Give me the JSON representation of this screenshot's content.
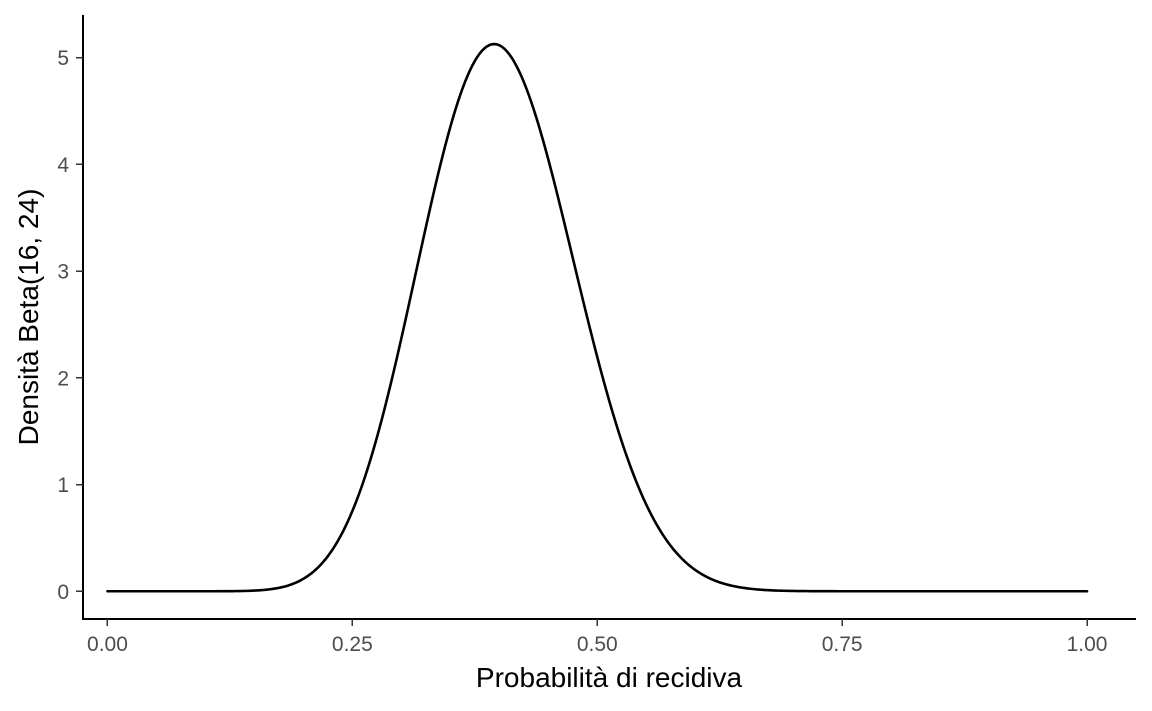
{
  "chart_data": {
    "type": "line",
    "title": "",
    "xlabel": "Probabilità di recidiva",
    "ylabel": "Densità Beta(16, 24)",
    "xlim": [
      -0.025,
      1.05
    ],
    "ylim": [
      -0.26,
      5.4
    ],
    "grid": false,
    "legend": "none",
    "x_ticks": [
      0,
      0.25,
      0.5,
      0.75,
      1
    ],
    "x_tick_labels": [
      "0.00",
      "0.25",
      "0.50",
      "0.75",
      "1.00"
    ],
    "y_ticks": [
      0,
      1,
      2,
      3,
      4,
      5
    ],
    "y_tick_labels": [
      "0",
      "1",
      "2",
      "3",
      "4",
      "5"
    ],
    "series": [
      {
        "distribution": "Beta",
        "alpha": 16,
        "beta": 24,
        "x": [
          0,
          0.05,
          0.1,
          0.15,
          0.2,
          0.22,
          0.25,
          0.28,
          0.3,
          0.32,
          0.35,
          0.38,
          0.395,
          0.4,
          0.42,
          0.45,
          0.48,
          0.5,
          0.52,
          0.55,
          0.6,
          0.65,
          0.7,
          0.75,
          0.8,
          0.9,
          1
        ],
        "y": [
          0,
          0,
          0.0,
          0.01,
          0.1,
          0.24,
          0.75,
          1.67,
          2.43,
          3.23,
          4.36,
          5.03,
          5.13,
          5.12,
          4.93,
          4.19,
          3.1,
          2.35,
          1.66,
          0.85,
          0.17,
          0.02,
          0.0,
          0,
          0,
          0,
          0
        ],
        "color": "#000000"
      }
    ]
  }
}
